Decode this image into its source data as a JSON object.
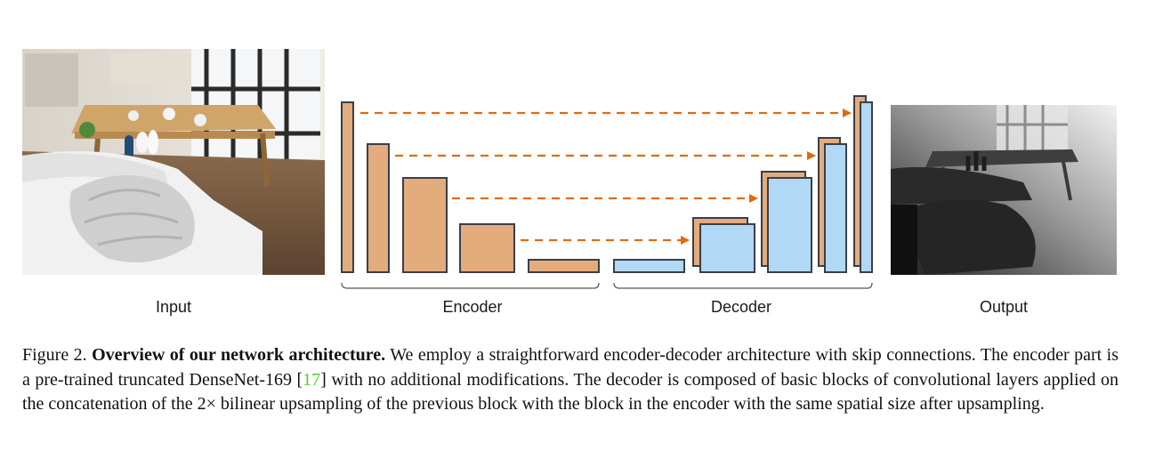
{
  "labels": {
    "input": "Input",
    "encoder": "Encoder",
    "decoder": "Decoder",
    "output": "Output"
  },
  "caption": {
    "figure_label": "Figure 2.",
    "title": "Overview of our network architecture.",
    "text_part1": "We employ a straightforward encoder-decoder architecture with skip connections. The encoder part is a pre-trained truncated DenseNet-169 [",
    "citation": "17",
    "text_part2": "] with no additional modifications. The decoder is composed of basic blocks of convolutional layers applied on the concatenation of the 2× bilinear upsampling of the previous block with the block in the encoder with the same spatial size after upsampling."
  },
  "colors": {
    "encoder_block": "#e3ac7d",
    "decoder_block": "#b1d8f5",
    "block_stroke": "#3a3f4a",
    "skip_arrow": "#e2690f",
    "citation": "#4fcf2a"
  }
}
